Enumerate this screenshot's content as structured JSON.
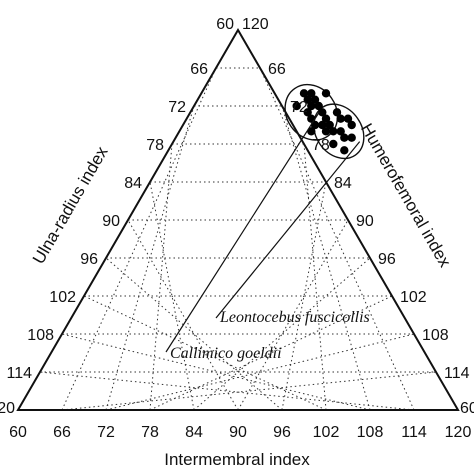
{
  "chart_data": {
    "type": "ternary-scatter",
    "axes": {
      "bottom": {
        "label": "Intermembral index",
        "ticks": [
          "60",
          "66",
          "72",
          "78",
          "84",
          "90",
          "96",
          "102",
          "108",
          "114",
          "120"
        ],
        "range": [
          60,
          120
        ]
      },
      "left": {
        "label": "Ulna-radius index",
        "ticks": [
          "114",
          "108",
          "102",
          "96",
          "90",
          "84",
          "78",
          "72",
          "66"
        ],
        "corner_labels": [
          "120",
          "60"
        ],
        "range": [
          60,
          120
        ]
      },
      "right": {
        "label": "Humerofemoral index",
        "ticks": [
          "114",
          "108",
          "102",
          "96",
          "90",
          "84",
          "78",
          "72",
          "66"
        ],
        "corner_labels": [
          "120",
          "60"
        ],
        "range": [
          60,
          120
        ]
      }
    },
    "grid": true,
    "grid_style": "dotted",
    "series": [
      {
        "name": "Leontocebus fuscicollis",
        "points": [
          {
            "intermembral": 80,
            "humerofemoral": 73
          },
          {
            "intermembral": 81,
            "humerofemoral": 74
          },
          {
            "intermembral": 82,
            "humerofemoral": 74
          },
          {
            "intermembral": 80,
            "humerofemoral": 75
          },
          {
            "intermembral": 81,
            "humerofemoral": 76
          },
          {
            "intermembral": 82,
            "humerofemoral": 76
          },
          {
            "intermembral": 83,
            "humerofemoral": 77
          },
          {
            "intermembral": 82,
            "humerofemoral": 78
          },
          {
            "intermembral": 84,
            "humerofemoral": 79
          },
          {
            "intermembral": 80,
            "humerofemoral": 76
          },
          {
            "intermembral": 83,
            "humerofemoral": 75
          },
          {
            "intermembral": 79,
            "humerofemoral": 74
          },
          {
            "intermembral": 84,
            "humerofemoral": 77
          }
        ]
      },
      {
        "name": "Callimico goeldii",
        "points": [
          {
            "intermembral": 74,
            "humerofemoral": 70
          },
          {
            "intermembral": 75,
            "humerofemoral": 70
          },
          {
            "intermembral": 76,
            "humerofemoral": 71
          },
          {
            "intermembral": 76,
            "humerofemoral": 72
          },
          {
            "intermembral": 77,
            "humerofemoral": 72
          },
          {
            "intermembral": 78,
            "humerofemoral": 73
          },
          {
            "intermembral": 77,
            "humerofemoral": 74
          },
          {
            "intermembral": 78,
            "humerofemoral": 75
          },
          {
            "intermembral": 79,
            "humerofemoral": 75
          },
          {
            "intermembral": 76,
            "humerofemoral": 73
          },
          {
            "intermembral": 75,
            "humerofemoral": 71
          },
          {
            "intermembral": 74,
            "humerofemoral": 72
          },
          {
            "intermembral": 77,
            "humerofemoral": 70
          },
          {
            "intermembral": 78,
            "humerofemoral": 76
          }
        ]
      }
    ]
  }
}
